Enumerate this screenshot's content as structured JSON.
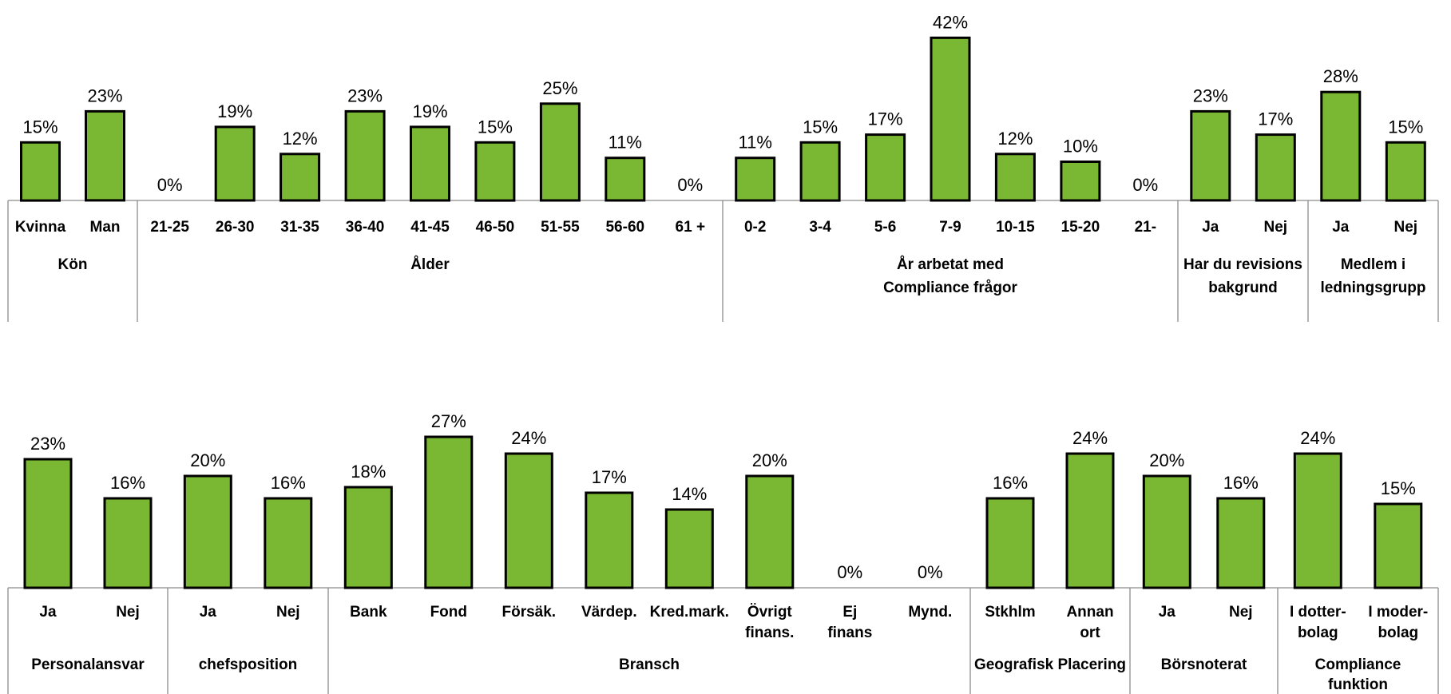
{
  "chart_data": [
    {
      "type": "bar",
      "value_format": "percent",
      "ylim": [
        0,
        45
      ],
      "grid": false,
      "groups": [
        {
          "label": [
            "Kön"
          ],
          "categories": [
            [
              "Kvinna"
            ],
            [
              "Man"
            ]
          ],
          "values": [
            15,
            23
          ]
        },
        {
          "label": [
            "Ålder"
          ],
          "categories": [
            [
              "21-25"
            ],
            [
              "26-30"
            ],
            [
              "31-35"
            ],
            [
              "36-40"
            ],
            [
              "41-45"
            ],
            [
              "46-50"
            ],
            [
              "51-55"
            ],
            [
              "56-60"
            ],
            [
              "61 +"
            ]
          ],
          "values": [
            0,
            19,
            12,
            23,
            19,
            15,
            25,
            11,
            0
          ]
        },
        {
          "label": [
            "År arbetat med",
            "Compliance frågor"
          ],
          "categories": [
            [
              "0-2"
            ],
            [
              "3-4"
            ],
            [
              "5-6"
            ],
            [
              "7-9"
            ],
            [
              "10-15"
            ],
            [
              "15-20"
            ],
            [
              "21-"
            ]
          ],
          "values": [
            11,
            15,
            17,
            42,
            12,
            10,
            0
          ]
        },
        {
          "label": [
            "Har du revisions",
            "bakgrund"
          ],
          "categories": [
            [
              "Ja"
            ],
            [
              "Nej"
            ]
          ],
          "values": [
            23,
            17
          ]
        },
        {
          "label": [
            "Medlem i",
            "ledningsgrupp"
          ],
          "categories": [
            [
              "Ja"
            ],
            [
              "Nej"
            ]
          ],
          "values": [
            28,
            15
          ]
        }
      ]
    },
    {
      "type": "bar",
      "value_format": "percent",
      "ylim": [
        0,
        30
      ],
      "grid": false,
      "groups": [
        {
          "label": [
            "Personalansvar"
          ],
          "categories": [
            [
              "Ja"
            ],
            [
              "Nej"
            ]
          ],
          "values": [
            23,
            16
          ]
        },
        {
          "label": [
            "chefsposition"
          ],
          "categories": [
            [
              "Ja"
            ],
            [
              "Nej"
            ]
          ],
          "values": [
            20,
            16
          ]
        },
        {
          "label": [
            "Bransch"
          ],
          "categories": [
            [
              "Bank"
            ],
            [
              "Fond"
            ],
            [
              "Försäk."
            ],
            [
              "Värdep."
            ],
            [
              "Kred.mark."
            ],
            [
              "Övrigt",
              "finans."
            ],
            [
              "Ej",
              "finans"
            ],
            [
              "Mynd."
            ]
          ],
          "values": [
            18,
            27,
            24,
            17,
            14,
            20,
            0,
            0
          ]
        },
        {
          "label": [
            "Geografisk Placering"
          ],
          "categories": [
            [
              "Stkhlm"
            ],
            [
              "Annan",
              "ort"
            ]
          ],
          "values": [
            16,
            24
          ]
        },
        {
          "label": [
            "Börsnoterat"
          ],
          "categories": [
            [
              "Ja"
            ],
            [
              "Nej"
            ]
          ],
          "values": [
            20,
            16
          ]
        },
        {
          "label": [
            "Compliance",
            "funktion"
          ],
          "categories": [
            [
              "I dotter-",
              "bolag"
            ],
            [
              "I moder-",
              "bolag"
            ]
          ],
          "values": [
            24,
            15
          ]
        }
      ]
    }
  ],
  "colors": {
    "bar_fill": "#7ab733",
    "bar_stroke": "#000000",
    "axis": "#8c8c8c"
  }
}
